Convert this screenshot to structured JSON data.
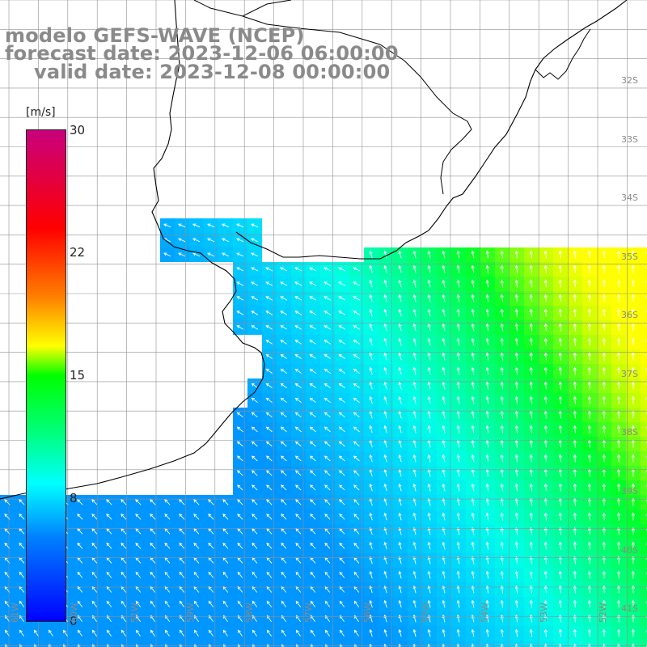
{
  "title": {
    "model": "modelo GEFS-WAVE (NCEP)",
    "forecast": "forecast date: 2023-12-06 06:00:00",
    "valid": "valid date: 2023-12-08 00:00:00"
  },
  "colorbar": {
    "units": "[m/s]",
    "ticks": [
      "30",
      "22",
      "15",
      "8",
      "0"
    ],
    "range": [
      0,
      30
    ],
    "colors": [
      "#0000ff",
      "#00a0ff",
      "#00ffff",
      "#00ff80",
      "#00ff00",
      "#ffff00",
      "#ff8000",
      "#ff0000",
      "#c8007d"
    ]
  },
  "lat_labels": [
    "32S",
    "33S",
    "34S",
    "35S",
    "36S",
    "37S",
    "38S",
    "39S",
    "40S",
    "41S"
  ],
  "lon_labels": [
    "61W",
    "60W",
    "59W",
    "58W",
    "57W",
    "56W",
    "55W",
    "54W",
    "53W",
    "52W",
    "51W"
  ],
  "map": {
    "field": "wind speed",
    "land_color": "#ffffff",
    "grid_color": "#909090",
    "coast_color": "#000000",
    "arrow_color": "#ffffff"
  }
}
